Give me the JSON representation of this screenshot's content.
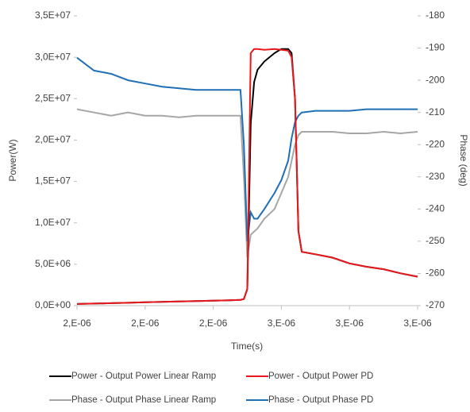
{
  "chart_data": {
    "type": "line",
    "xlabel": "Time(s)",
    "ylabel": "Power(W)",
    "y2label": "Phase (deg)",
    "x": [
      2e-06,
      2.05e-06,
      2.1e-06,
      2.15e-06,
      2.2e-06,
      2.25e-06,
      2.3e-06,
      2.35e-06,
      2.4e-06,
      2.45e-06,
      2.48e-06,
      2.49e-06,
      2.5e-06,
      2.51e-06,
      2.52e-06,
      2.53e-06,
      2.55e-06,
      2.58e-06,
      2.6e-06,
      2.62e-06,
      2.63e-06,
      2.64e-06,
      2.65e-06,
      2.66e-06,
      2.7e-06,
      2.75e-06,
      2.8e-06,
      2.85e-06,
      2.9e-06,
      2.95e-06,
      3e-06
    ],
    "xlim": [
      2e-06,
      3e-06
    ],
    "xticks": [
      {
        "value": 2e-06,
        "label": "2,E-06"
      },
      {
        "value": 2.2e-06,
        "label": "2,E-06"
      },
      {
        "value": 2.4e-06,
        "label": "2,E-06"
      },
      {
        "value": 2.6e-06,
        "label": "3,E-06"
      },
      {
        "value": 2.8e-06,
        "label": "3,E-06"
      },
      {
        "value": 3e-06,
        "label": "3,E-06"
      }
    ],
    "ylim": [
      0,
      35000000
    ],
    "yticks": [
      {
        "value": 0,
        "label": "0,0E+00"
      },
      {
        "value": 5000000,
        "label": "5,0E+06"
      },
      {
        "value": 10000000,
        "label": "1,0E+07"
      },
      {
        "value": 15000000,
        "label": "1,5E+07"
      },
      {
        "value": 20000000,
        "label": "2,0E+07"
      },
      {
        "value": 25000000,
        "label": "2,5E+07"
      },
      {
        "value": 30000000,
        "label": "3,0E+07"
      },
      {
        "value": 35000000,
        "label": "3,5E+07"
      }
    ],
    "y2lim": [
      -270,
      -180
    ],
    "y2ticks": [
      -270,
      -260,
      -250,
      -240,
      -230,
      -220,
      -210,
      -200,
      -190,
      -180
    ],
    "series": [
      {
        "name": "Power  - Output Power Linear Ramp",
        "color": "#000000",
        "values": [
          200000,
          250000,
          300000,
          350000,
          400000,
          450000,
          500000,
          550000,
          600000,
          650000,
          700000,
          800000,
          2000000,
          22000000,
          27000000,
          28500000,
          29500000,
          30500000,
          31000000,
          31000000,
          30500000,
          25000000,
          9000000,
          6500000,
          6200000,
          5800000,
          5100000,
          4700000,
          4400000,
          3900000,
          3500000
        ]
      },
      {
        "name": "Power  - Output Power PD",
        "color": "#e8181c",
        "values": [
          200000,
          250000,
          300000,
          350000,
          400000,
          450000,
          500000,
          550000,
          600000,
          650000,
          700000,
          800000,
          2000000,
          30500000,
          31000000,
          31000000,
          30900000,
          31000000,
          30900000,
          30800000,
          30000000,
          25000000,
          9000000,
          6500000,
          6200000,
          5800000,
          5100000,
          4700000,
          4400000,
          3900000,
          3500000
        ]
      },
      {
        "name": "Phase - Output Phase Linear Ramp",
        "color": "#a6a6a6",
        "axis": "y2",
        "values": [
          -209,
          -210,
          -211,
          -210,
          -211,
          -211,
          -211.5,
          -211,
          -211,
          -211,
          -211,
          -230,
          -255,
          -248,
          -247,
          -246,
          -243,
          -240,
          -235,
          -230,
          -225,
          -220,
          -217,
          -216,
          -216,
          -216,
          -216.5,
          -216.5,
          -216,
          -216.5,
          -216
        ]
      },
      {
        "name": "Phase - Output Phase PD",
        "color": "#1f6fb4",
        "axis": "y2",
        "values": [
          -193,
          -197,
          -198,
          -200,
          -201,
          -202,
          -202.5,
          -203,
          -203,
          -203,
          -203,
          -220,
          -250,
          -241,
          -243,
          -243,
          -240,
          -235,
          -231,
          -225,
          -218,
          -213,
          -211,
          -210,
          -209.5,
          -209.5,
          -209.5,
          -209,
          -209,
          -209,
          -209
        ]
      }
    ]
  }
}
